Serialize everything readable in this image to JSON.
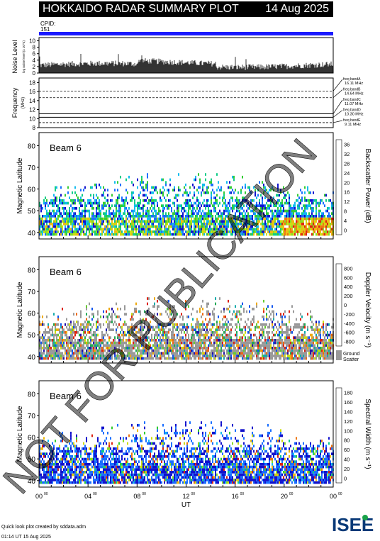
{
  "header": {
    "title": "HOKKAIDO RADAR SUMMARY PLOT",
    "date": "14 Aug 2025"
  },
  "cpid": {
    "label": "CPID:",
    "value": "151"
  },
  "noise": {
    "ylabel": "Noise Level",
    "sublabel": "log noise level (x 10^4)",
    "ticks": [
      "0",
      "2",
      "4",
      "6",
      "8",
      "10"
    ]
  },
  "frequency": {
    "ylabel": "Frequency",
    "unit": "(MHz)",
    "ticks": [
      "8",
      "10",
      "12",
      "14",
      "16",
      "18"
    ],
    "bands": [
      {
        "label": "freq bandA",
        "value": "16.11 MHz",
        "mhz": 16.11
      },
      {
        "label": "freq bandB",
        "value": "14.64 MHz",
        "mhz": 14.64
      },
      {
        "label": "freq bandC",
        "value": "11.07 MHz",
        "mhz": 11.07
      },
      {
        "label": "freq bandD",
        "value": "10.30 MHz",
        "mhz": 10.3
      },
      {
        "label": "freq bandE",
        "value": "9.11 MHz",
        "mhz": 9.11
      }
    ]
  },
  "panels": [
    {
      "beam": "Beam  6",
      "ylabel": "Magnetic Latitude",
      "cbar_label": "Backscatter Power (dB)",
      "cbar_ticks": [
        "0",
        "4",
        "8",
        "12",
        "16",
        "20",
        "24",
        "28",
        "32",
        "36"
      ],
      "palette": "power",
      "ground": false
    },
    {
      "beam": "Beam  6",
      "ylabel": "Magnetic Latitude",
      "cbar_label": "Doppler Velocity (m s⁻¹)",
      "cbar_ticks": [
        "-800",
        "-600",
        "-400",
        "-200",
        "0",
        "200",
        "400",
        "600",
        "800"
      ],
      "palette": "velocity",
      "ground": true,
      "ground_label1": "Ground",
      "ground_label2": "Scatter"
    },
    {
      "beam": "Beam  6",
      "ylabel": "Magnetic Latitude",
      "cbar_label": "Spectral Width (m s⁻¹)",
      "cbar_ticks": [
        "0",
        "20",
        "40",
        "60",
        "80",
        "100",
        "120",
        "140",
        "160",
        "180"
      ],
      "palette": "width",
      "ground": false
    }
  ],
  "lat_ticks": [
    "40",
    "50",
    "60",
    "70",
    "80"
  ],
  "xaxis": {
    "label": "UT",
    "ticks": [
      "00",
      "04",
      "08",
      "12",
      "16",
      "20",
      "00"
    ],
    "sup": "00"
  },
  "watermark": "NOT FOR PUBLICATION",
  "footer": {
    "line1": "Quick look plot created by sddata.adm",
    "line2": "01:14 UT 15 Aug 2025"
  },
  "logo": {
    "text": "ISEE"
  },
  "colors": {
    "accent_bar": "#1a1aff",
    "ground": "#999999"
  },
  "chart_data": [
    {
      "type": "heatmap",
      "title": "Beam 6 Backscatter Power",
      "xlabel": "UT",
      "ylabel": "Magnetic Latitude",
      "ylim": [
        37,
        86
      ],
      "xlim": [
        0,
        24
      ],
      "zlabel": "Backscatter Power (dB)",
      "zlim": [
        0,
        38
      ]
    },
    {
      "type": "heatmap",
      "title": "Beam 6 Doppler Velocity",
      "xlabel": "UT",
      "ylabel": "Magnetic Latitude",
      "ylim": [
        37,
        86
      ],
      "xlim": [
        0,
        24
      ],
      "zlabel": "Doppler Velocity (m/s)",
      "zlim": [
        -900,
        900
      ]
    },
    {
      "type": "heatmap",
      "title": "Beam 6 Spectral Width",
      "xlabel": "UT",
      "ylabel": "Magnetic Latitude",
      "ylim": [
        37,
        86
      ],
      "xlim": [
        0,
        24
      ],
      "zlabel": "Spectral Width (m/s)",
      "zlim": [
        0,
        190
      ]
    }
  ]
}
